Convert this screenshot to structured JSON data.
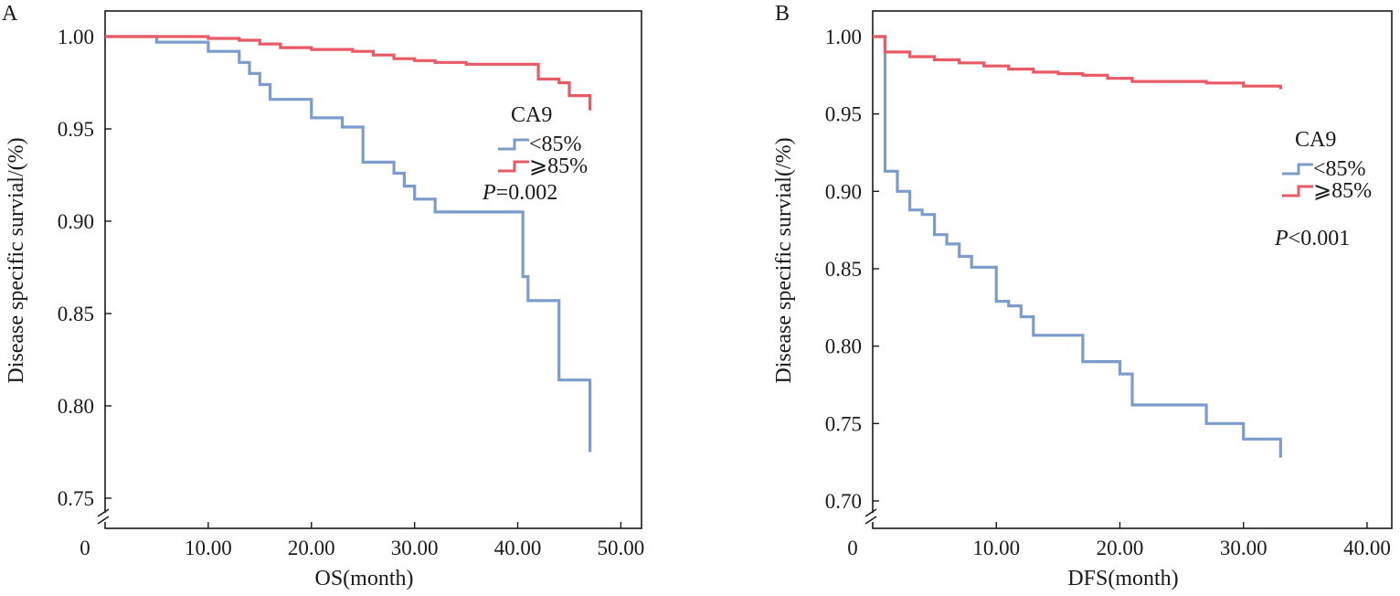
{
  "colors": {
    "low": "#7d9ccc",
    "high": "#e85a66",
    "axis": "#1a1a1a"
  },
  "chart_data": [
    {
      "panel": "A",
      "type": "line",
      "step": true,
      "xlabel": "OS(month)",
      "ylabel": "Disease specific survial/(%)",
      "xlim": [
        0,
        52
      ],
      "ylim": [
        0.74,
        1.01
      ],
      "xticks": [
        10,
        20,
        30,
        40,
        50
      ],
      "xtick_labels": [
        "10.00",
        "20.00",
        "30.00",
        "40.00",
        "50.00"
      ],
      "yticks": [
        1.0,
        0.95,
        0.9,
        0.85,
        0.8,
        0.75
      ],
      "ytick_labels": [
        "1.00",
        "0.95",
        "0.90",
        "0.85",
        "0.80",
        "0.75"
      ],
      "origin_label": "0",
      "axis_break": true,
      "legend": {
        "title": "CA9",
        "entries": [
          "<85%",
          "⩾85%"
        ]
      },
      "p_value": {
        "symbol": "P",
        "text": "=0.002"
      },
      "series": [
        {
          "name": "<85%",
          "color_key": "low",
          "x": [
            0,
            5,
            10,
            13,
            14,
            15,
            16,
            20,
            23,
            25,
            28,
            29,
            30,
            32,
            40,
            40.5,
            41,
            44,
            47,
            47
          ],
          "y": [
            1.0,
            0.997,
            0.992,
            0.986,
            0.98,
            0.974,
            0.966,
            0.956,
            0.951,
            0.932,
            0.926,
            0.919,
            0.912,
            0.905,
            0.905,
            0.87,
            0.857,
            0.814,
            0.814,
            0.775
          ]
        },
        {
          "name": "⩾85%",
          "color_key": "high",
          "x": [
            0,
            5,
            10,
            13,
            15,
            17,
            20,
            24,
            26,
            28,
            30,
            32,
            35,
            40,
            42,
            44,
            45,
            47,
            47
          ],
          "y": [
            1.0,
            1.0,
            0.999,
            0.998,
            0.996,
            0.994,
            0.993,
            0.992,
            0.99,
            0.988,
            0.987,
            0.986,
            0.985,
            0.985,
            0.977,
            0.975,
            0.968,
            0.968,
            0.96
          ]
        }
      ]
    },
    {
      "panel": "B",
      "type": "line",
      "step": true,
      "xlabel": "DFS(month)",
      "ylabel": "Disease specific survial(/%)",
      "xlim": [
        0,
        42
      ],
      "ylim": [
        0.69,
        1.01
      ],
      "xticks": [
        10,
        20,
        30,
        40
      ],
      "xtick_labels": [
        "10.00",
        "20.00",
        "30.00",
        "40.00"
      ],
      "yticks": [
        1.0,
        0.95,
        0.9,
        0.85,
        0.8,
        0.75,
        0.7
      ],
      "ytick_labels": [
        "1.00",
        "0.95",
        "0.90",
        "0.85",
        "0.80",
        "0.75",
        "0.70"
      ],
      "origin_label": "0",
      "axis_break": true,
      "legend": {
        "title": "CA9",
        "entries": [
          "<85%",
          "⩾85%"
        ]
      },
      "p_value": {
        "symbol": "P",
        "text": "<0.001"
      },
      "series": [
        {
          "name": "<85%",
          "color_key": "low",
          "x": [
            0,
            1,
            2,
            3,
            4,
            5,
            6,
            7,
            8,
            10,
            11,
            12,
            13,
            15,
            17,
            20,
            21,
            24,
            27,
            30,
            33,
            33
          ],
          "y": [
            1.0,
            0.913,
            0.9,
            0.888,
            0.885,
            0.872,
            0.866,
            0.858,
            0.851,
            0.829,
            0.826,
            0.819,
            0.807,
            0.807,
            0.79,
            0.782,
            0.762,
            0.762,
            0.75,
            0.74,
            0.74,
            0.728
          ]
        },
        {
          "name": "⩾85%",
          "color_key": "high",
          "x": [
            0,
            1,
            3,
            5,
            7,
            9,
            11,
            13,
            15,
            17,
            19,
            21,
            24,
            27,
            30,
            33
          ],
          "y": [
            1.0,
            0.99,
            0.987,
            0.985,
            0.983,
            0.981,
            0.979,
            0.977,
            0.976,
            0.975,
            0.973,
            0.971,
            0.971,
            0.97,
            0.968,
            0.966
          ]
        }
      ]
    }
  ]
}
